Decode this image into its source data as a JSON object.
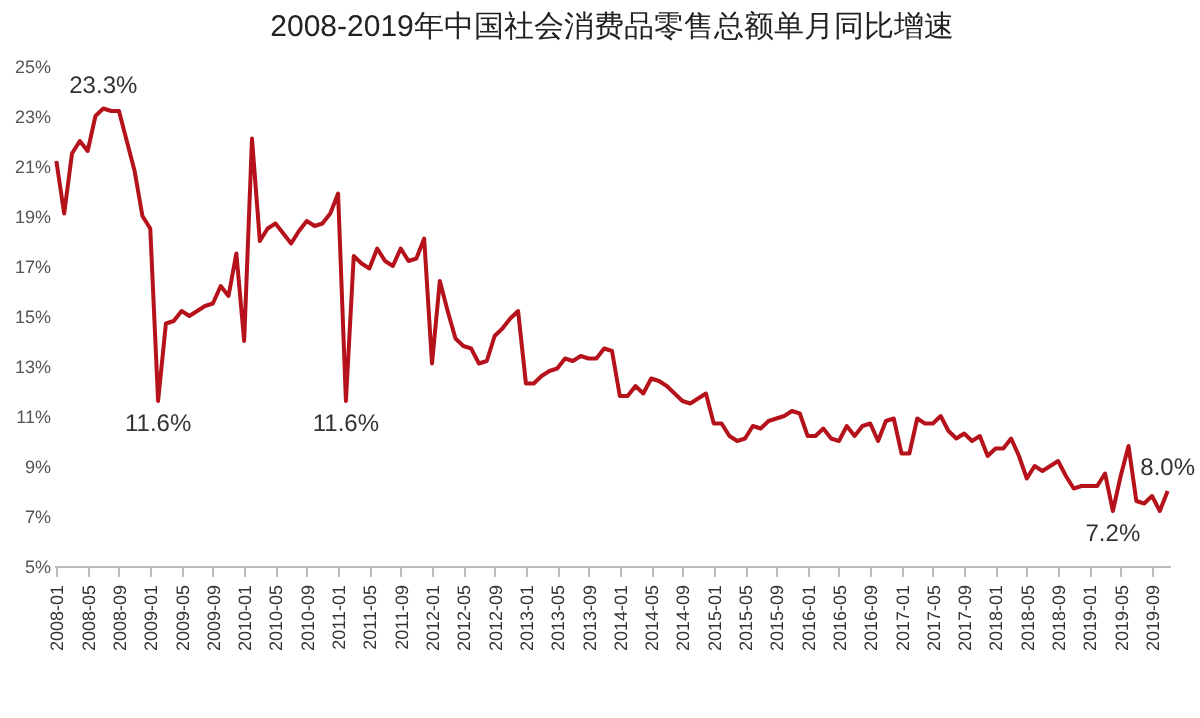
{
  "chart_data": {
    "type": "line",
    "title": "2008-2019年中国社会消费品零售总额单月同比增速",
    "categories": [
      "2008-01",
      null,
      null,
      null,
      "2008-05",
      null,
      null,
      null,
      "2008-09",
      null,
      null,
      null,
      "2009-01",
      null,
      null,
      null,
      "2009-05",
      null,
      null,
      null,
      "2009-09",
      null,
      null,
      null,
      "2010-01",
      null,
      null,
      null,
      "2010-05",
      null,
      null,
      null,
      "2010-09",
      null,
      null,
      null,
      "2011-01",
      null,
      null,
      null,
      "2011-05",
      null,
      null,
      null,
      "2011-09",
      null,
      null,
      null,
      "2012-01",
      null,
      null,
      null,
      "2012-05",
      null,
      null,
      null,
      "2012-09",
      null,
      null,
      null,
      "2013-01",
      null,
      null,
      null,
      "2013-05",
      null,
      null,
      null,
      "2013-09",
      null,
      null,
      null,
      "2014-01",
      null,
      null,
      null,
      "2014-05",
      null,
      null,
      null,
      "2014-09",
      null,
      null,
      null,
      "2015-01",
      null,
      null,
      null,
      "2015-05",
      null,
      null,
      null,
      "2015-09",
      null,
      null,
      null,
      "2016-01",
      null,
      null,
      null,
      "2016-05",
      null,
      null,
      null,
      "2016-09",
      null,
      null,
      null,
      "2017-01",
      null,
      null,
      null,
      "2017-05",
      null,
      null,
      null,
      "2017-09",
      null,
      null,
      null,
      "2018-01",
      null,
      null,
      null,
      "2018-05",
      null,
      null,
      null,
      "2018-09",
      null,
      null,
      null,
      "2019-01",
      null,
      null,
      null,
      "2019-05",
      null,
      null,
      null,
      "2019-09",
      null,
      null
    ],
    "series": [
      {
        "color": "#b5121b",
        "values": [
          21.2,
          19.1,
          21.5,
          22.0,
          21.6,
          23.0,
          23.3,
          23.2,
          23.2,
          22.0,
          20.8,
          19.0,
          18.5,
          11.6,
          14.7,
          14.8,
          15.2,
          15.0,
          15.2,
          15.4,
          15.5,
          16.2,
          15.8,
          17.5,
          14.0,
          22.1,
          18.0,
          18.5,
          18.7,
          18.3,
          17.9,
          18.4,
          18.8,
          18.6,
          18.7,
          19.1,
          19.9,
          11.6,
          17.4,
          17.1,
          16.9,
          17.7,
          17.2,
          17.0,
          17.7,
          17.2,
          17.3,
          18.1,
          13.1,
          16.4,
          15.2,
          14.1,
          13.8,
          13.7,
          13.1,
          13.2,
          14.2,
          14.5,
          14.9,
          15.2,
          12.3,
          12.3,
          12.6,
          12.8,
          12.9,
          13.3,
          13.2,
          13.4,
          13.3,
          13.3,
          13.7,
          13.6,
          11.8,
          11.8,
          12.2,
          11.9,
          12.5,
          12.4,
          12.2,
          11.9,
          11.6,
          11.5,
          11.7,
          11.9,
          10.7,
          10.7,
          10.2,
          10.0,
          10.1,
          10.6,
          10.5,
          10.8,
          10.9,
          11.0,
          11.2,
          11.1,
          10.2,
          10.2,
          10.5,
          10.1,
          10.0,
          10.6,
          10.2,
          10.6,
          10.7,
          10.0,
          10.8,
          10.9,
          9.5,
          9.5,
          10.9,
          10.7,
          10.7,
          11.0,
          10.4,
          10.1,
          10.3,
          10.0,
          10.2,
          9.4,
          9.7,
          9.7,
          10.1,
          9.4,
          8.5,
          9.0,
          8.8,
          9.0,
          9.2,
          8.6,
          8.1,
          8.2,
          8.2,
          8.2,
          8.7,
          7.2,
          8.6,
          9.8,
          7.6,
          7.5,
          7.8,
          7.2,
          8.0
        ],
        "value_labels": [
          null,
          null,
          null,
          null,
          null,
          null,
          "23.3%",
          null,
          null,
          null,
          null,
          null,
          null,
          "11.6%",
          null,
          null,
          null,
          null,
          null,
          null,
          null,
          null,
          null,
          null,
          null,
          null,
          null,
          null,
          null,
          null,
          null,
          null,
          null,
          null,
          null,
          null,
          null,
          "11.6%",
          null,
          null,
          null,
          null,
          null,
          null,
          null,
          null,
          null,
          null,
          null,
          null,
          null,
          null,
          null,
          null,
          null,
          null,
          null,
          null,
          null,
          null,
          null,
          null,
          null,
          null,
          null,
          null,
          null,
          null,
          null,
          null,
          null,
          null,
          null,
          null,
          null,
          null,
          null,
          null,
          null,
          null,
          null,
          null,
          null,
          null,
          null,
          null,
          null,
          null,
          null,
          null,
          null,
          null,
          null,
          null,
          null,
          null,
          null,
          null,
          null,
          null,
          null,
          null,
          null,
          null,
          null,
          null,
          null,
          null,
          null,
          null,
          null,
          null,
          null,
          null,
          null,
          null,
          null,
          null,
          null,
          null,
          null,
          null,
          null,
          null,
          null,
          null,
          null,
          null,
          null,
          null,
          null,
          null,
          null,
          null,
          null,
          "7.2%",
          null,
          null,
          null,
          null,
          null,
          null,
          "8.0%"
        ]
      }
    ],
    "ylim": [
      5,
      25
    ],
    "yticks": [
      {
        "value": 5,
        "label": "5%"
      },
      {
        "value": 7,
        "label": "7%"
      },
      {
        "value": 9,
        "label": "9%"
      },
      {
        "value": 11,
        "label": "11%"
      },
      {
        "value": 13,
        "label": "13%"
      },
      {
        "value": 15,
        "label": "15%"
      },
      {
        "value": 17,
        "label": "17%"
      },
      {
        "value": 19,
        "label": "19%"
      },
      {
        "value": 21,
        "label": "21%"
      },
      {
        "value": 23,
        "label": "23%"
      },
      {
        "value": 25,
        "label": "25%"
      }
    ],
    "grid": false,
    "marker": "none",
    "line_style": "solid"
  }
}
